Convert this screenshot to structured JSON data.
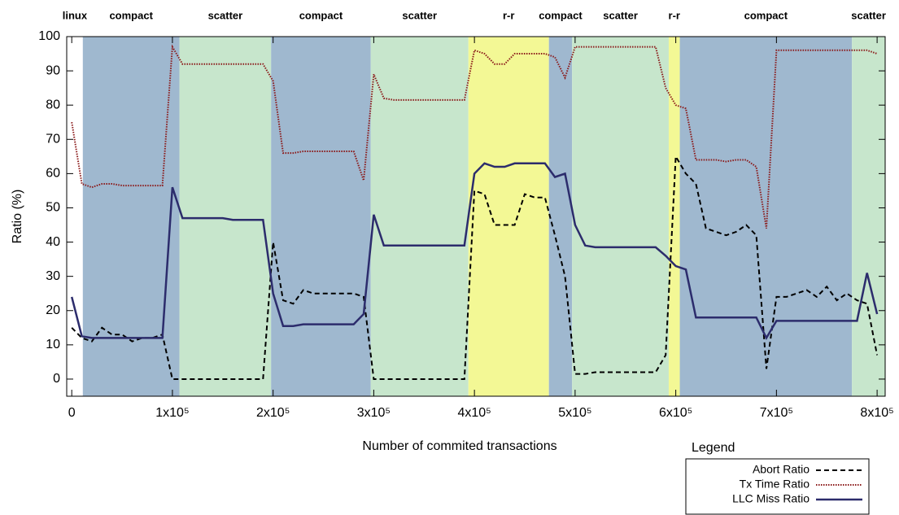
{
  "chart_data": {
    "type": "line",
    "x_label": "Number of commited transactions",
    "y_label": "Ratio (%)",
    "legend_title": "Legend",
    "legend": "bottom-right",
    "xlim": [
      -5000,
      808000
    ],
    "ylim": [
      -5,
      100
    ],
    "xticks": [
      0,
      {
        "value": 100000,
        "label": "1x10⁵"
      },
      {
        "value": 200000,
        "label": "2x10⁵"
      },
      {
        "value": 300000,
        "label": "3x10⁵"
      },
      {
        "value": 400000,
        "label": "4x10⁵"
      },
      {
        "value": 500000,
        "label": "5x10⁵"
      },
      {
        "value": 600000,
        "label": "6x10⁵"
      },
      {
        "value": 700000,
        "label": "7x10⁵"
      },
      {
        "value": 800000,
        "label": "8x10⁵"
      }
    ],
    "yticks": [
      0,
      10,
      20,
      30,
      40,
      50,
      60,
      70,
      80,
      90,
      100
    ],
    "bands": [
      {
        "label": "linux",
        "start": -5000,
        "end": 11000,
        "color": "#ffffff"
      },
      {
        "label": "compact",
        "start": 11000,
        "end": 107000,
        "color": "#9fb8cf"
      },
      {
        "label": "scatter",
        "start": 107000,
        "end": 198000,
        "color": "#c7e6cc"
      },
      {
        "label": "compact",
        "start": 198000,
        "end": 297000,
        "color": "#9fb8cf"
      },
      {
        "label": "scatter",
        "start": 297000,
        "end": 394000,
        "color": "#c7e6cc"
      },
      {
        "label": "r-r",
        "start": 394000,
        "end": 474000,
        "color": "#f3f895"
      },
      {
        "label": "compact",
        "start": 474000,
        "end": 497000,
        "color": "#9fb8cf"
      },
      {
        "label": "scatter",
        "start": 497000,
        "end": 593000,
        "color": "#c7e6cc"
      },
      {
        "label": "r-r",
        "start": 593000,
        "end": 604000,
        "color": "#f3f895"
      },
      {
        "label": "compact",
        "start": 604000,
        "end": 775000,
        "color": "#9fb8cf"
      },
      {
        "label": "scatter",
        "start": 775000,
        "end": 808000,
        "color": "#c7e6cc"
      }
    ],
    "x": [
      0,
      10000,
      20000,
      30000,
      40000,
      50000,
      60000,
      70000,
      80000,
      90000,
      100000,
      110000,
      120000,
      130000,
      140000,
      150000,
      160000,
      170000,
      180000,
      190000,
      200000,
      210000,
      220000,
      230000,
      240000,
      250000,
      260000,
      270000,
      280000,
      290000,
      300000,
      310000,
      320000,
      330000,
      340000,
      350000,
      360000,
      370000,
      380000,
      390000,
      400000,
      410000,
      420000,
      430000,
      440000,
      450000,
      460000,
      470000,
      480000,
      490000,
      500000,
      510000,
      520000,
      530000,
      540000,
      550000,
      560000,
      570000,
      580000,
      590000,
      600000,
      610000,
      620000,
      630000,
      640000,
      650000,
      660000,
      670000,
      680000,
      690000,
      700000,
      710000,
      720000,
      730000,
      740000,
      750000,
      760000,
      770000,
      780000,
      790000,
      800000
    ],
    "series": [
      {
        "name": "Abort Ratio",
        "color": "#000000",
        "dash": "6,4",
        "values": [
          15,
          12,
          11,
          15,
          13,
          13,
          11,
          12,
          12,
          13,
          0,
          0,
          0,
          0,
          0,
          0,
          0,
          0,
          0,
          0,
          40,
          23,
          22,
          26,
          25,
          25,
          25,
          25,
          25,
          24,
          0,
          0,
          0,
          0,
          0,
          0,
          0,
          0,
          0,
          0,
          55,
          54,
          45,
          45,
          45,
          54,
          53,
          53,
          42,
          30,
          1.5,
          1.5,
          2,
          2,
          2,
          2,
          2,
          2,
          2,
          7,
          65,
          60,
          57,
          44,
          43,
          42,
          43,
          45,
          42,
          3,
          24,
          24,
          25,
          26,
          24,
          27,
          23,
          25,
          23,
          22,
          7
        ]
      },
      {
        "name": "Tx Time Ratio",
        "color": "#8b1a1a",
        "dash": "1.5,1.5",
        "values": [
          75,
          57,
          56,
          57,
          57,
          56.5,
          56.5,
          56.5,
          56.5,
          56.5,
          97,
          92,
          92,
          92,
          92,
          92,
          92,
          92,
          92,
          92,
          87,
          66,
          66,
          66.5,
          66.5,
          66.5,
          66.5,
          66.5,
          66.5,
          58,
          89,
          82,
          81.5,
          81.5,
          81.5,
          81.5,
          81.5,
          81.5,
          81.5,
          81.5,
          96,
          95,
          92,
          92,
          95,
          95,
          95,
          95,
          94,
          88,
          97,
          97,
          97,
          97,
          97,
          97,
          97,
          97,
          97,
          85,
          80,
          79,
          64,
          64,
          64,
          63.5,
          64,
          64,
          62,
          44,
          96,
          96,
          96,
          96,
          96,
          96,
          96,
          96,
          96,
          96,
          95
        ]
      },
      {
        "name": "LLC Miss Ratio",
        "color": "#2c2c6c",
        "dash": "",
        "values": [
          24,
          12.5,
          12,
          12,
          12,
          12,
          12,
          12,
          12,
          12,
          56,
          47,
          47,
          47,
          47,
          47,
          46.5,
          46.5,
          46.5,
          46.5,
          25,
          15.5,
          15.5,
          16,
          16,
          16,
          16,
          16,
          16,
          19,
          48,
          39,
          39,
          39,
          39,
          39,
          39,
          39,
          39,
          39,
          60,
          63,
          62,
          62,
          63,
          63,
          63,
          63,
          59,
          60,
          45,
          39,
          38.5,
          38.5,
          38.5,
          38.5,
          38.5,
          38.5,
          38.5,
          36,
          33,
          32,
          18,
          18,
          18,
          18,
          18,
          18,
          18,
          12,
          17,
          17,
          17,
          17,
          17,
          17,
          17,
          17,
          17,
          31,
          19
        ]
      }
    ]
  }
}
